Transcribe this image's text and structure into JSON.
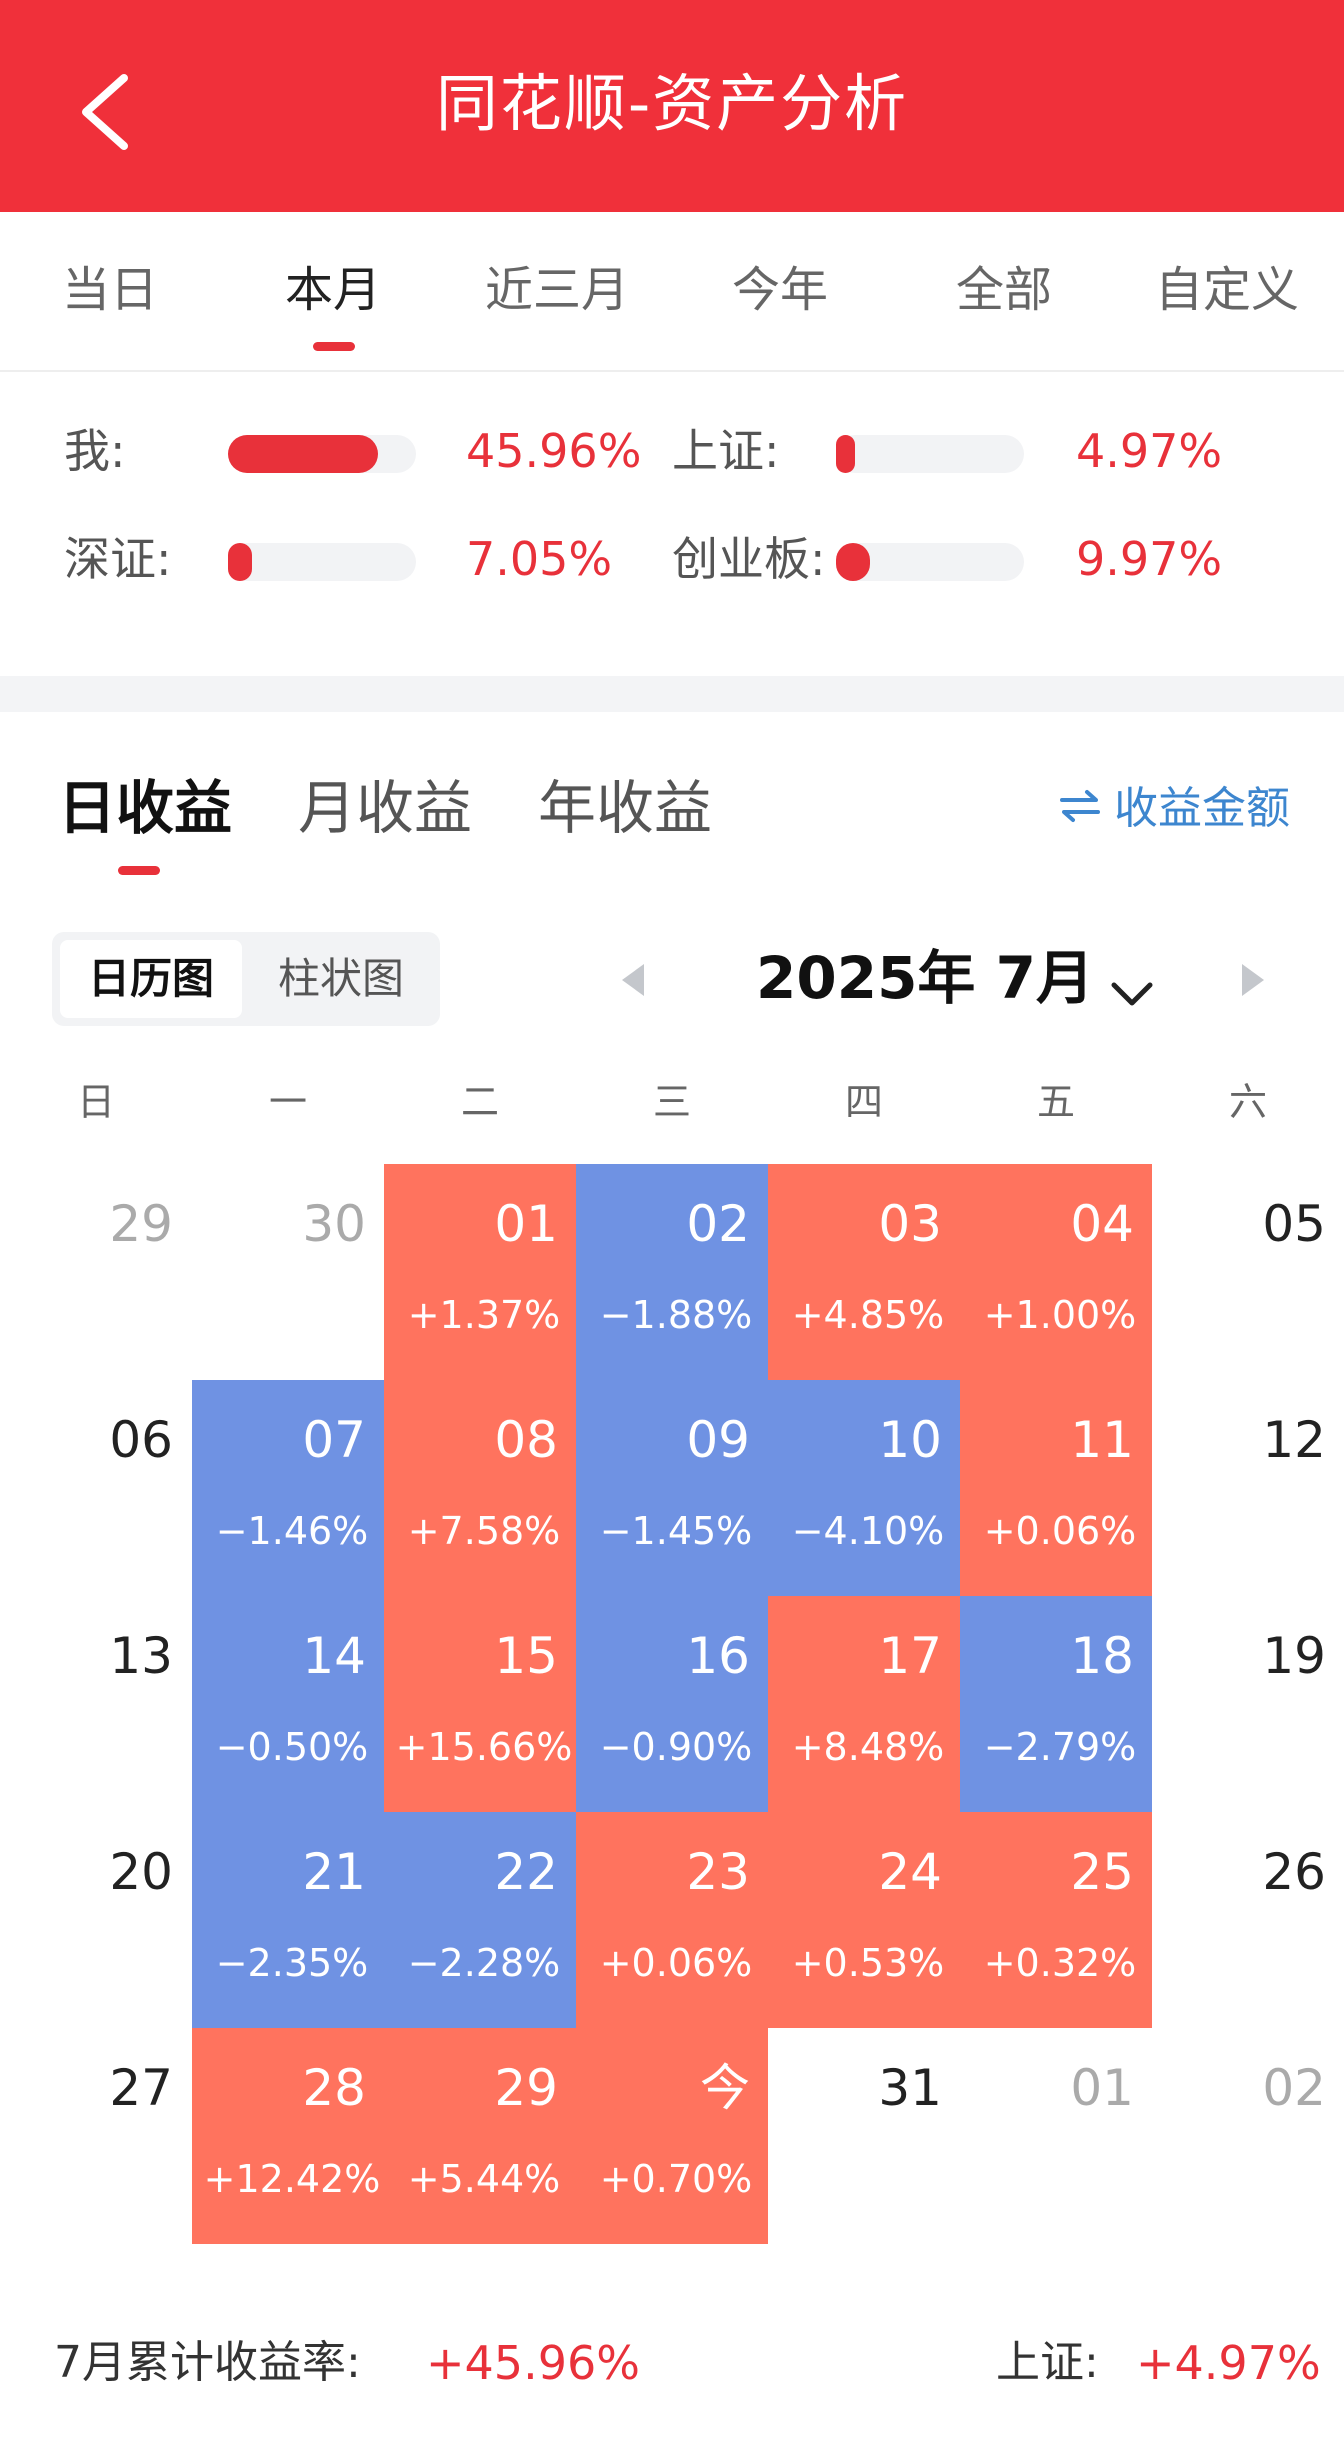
{
  "header": {
    "title": "同花顺-资产分析",
    "back_icon": "chevron-left-icon",
    "background": "#f0303a"
  },
  "period_tabs": [
    {
      "label": "当日",
      "active": false
    },
    {
      "label": "本月",
      "active": true
    },
    {
      "label": "近三月",
      "active": false
    },
    {
      "label": "今年",
      "active": false
    },
    {
      "label": "全部",
      "active": false
    },
    {
      "label": "自定义",
      "active": false
    }
  ],
  "comparison": [
    {
      "label": "我:",
      "value": "45.96%",
      "fill": 0.8
    },
    {
      "label": "上证:",
      "value": "4.97%",
      "fill": 0.09
    },
    {
      "label": "深证:",
      "value": "7.05%",
      "fill": 0.13
    },
    {
      "label": "创业板:",
      "value": "9.97%",
      "fill": 0.18
    }
  ],
  "gain_tabs": [
    {
      "label": "日收益",
      "active": true
    },
    {
      "label": "月收益",
      "active": false
    },
    {
      "label": "年收益",
      "active": false
    }
  ],
  "amount_toggle": {
    "label": "收益金额",
    "icon": "swap-arrows-icon"
  },
  "view_switch": [
    {
      "label": "日历图",
      "active": true
    },
    {
      "label": "柱状图",
      "active": false
    }
  ],
  "month_nav": {
    "label": "2025年 7月",
    "prev_icon": "caret-left-icon",
    "next_icon": "caret-right-icon",
    "dropdown_icon": "chevron-down-icon"
  },
  "weekdays": [
    "日",
    "一",
    "二",
    "三",
    "四",
    "五",
    "六"
  ],
  "calendar": [
    [
      {
        "day": "29",
        "state": "muted"
      },
      {
        "day": "30",
        "state": "muted"
      },
      {
        "day": "01",
        "pct": "+1.37%",
        "state": "pos"
      },
      {
        "day": "02",
        "pct": "−1.88%",
        "state": "neg"
      },
      {
        "day": "03",
        "pct": "+4.85%",
        "state": "pos"
      },
      {
        "day": "04",
        "pct": "+1.00%",
        "state": "pos"
      },
      {
        "day": "05",
        "state": "plain"
      }
    ],
    [
      {
        "day": "06",
        "state": "plain"
      },
      {
        "day": "07",
        "pct": "−1.46%",
        "state": "neg"
      },
      {
        "day": "08",
        "pct": "+7.58%",
        "state": "pos"
      },
      {
        "day": "09",
        "pct": "−1.45%",
        "state": "neg"
      },
      {
        "day": "10",
        "pct": "−4.10%",
        "state": "neg"
      },
      {
        "day": "11",
        "pct": "+0.06%",
        "state": "pos"
      },
      {
        "day": "12",
        "state": "plain"
      }
    ],
    [
      {
        "day": "13",
        "state": "plain"
      },
      {
        "day": "14",
        "pct": "−0.50%",
        "state": "neg"
      },
      {
        "day": "15",
        "pct": "+15.66%",
        "state": "pos"
      },
      {
        "day": "16",
        "pct": "−0.90%",
        "state": "neg"
      },
      {
        "day": "17",
        "pct": "+8.48%",
        "state": "pos"
      },
      {
        "day": "18",
        "pct": "−2.79%",
        "state": "neg"
      },
      {
        "day": "19",
        "state": "plain"
      }
    ],
    [
      {
        "day": "20",
        "state": "plain"
      },
      {
        "day": "21",
        "pct": "−2.35%",
        "state": "neg"
      },
      {
        "day": "22",
        "pct": "−2.28%",
        "state": "neg"
      },
      {
        "day": "23",
        "pct": "+0.06%",
        "state": "pos"
      },
      {
        "day": "24",
        "pct": "+0.53%",
        "state": "pos"
      },
      {
        "day": "25",
        "pct": "+0.32%",
        "state": "pos"
      },
      {
        "day": "26",
        "state": "plain"
      }
    ],
    [
      {
        "day": "27",
        "state": "plain"
      },
      {
        "day": "28",
        "pct": "+12.42%",
        "state": "pos"
      },
      {
        "day": "29",
        "pct": "+5.44%",
        "state": "pos"
      },
      {
        "day": "今",
        "pct": "+0.70%",
        "state": "pos"
      },
      {
        "day": "31",
        "state": "plain"
      },
      {
        "day": "01",
        "state": "muted"
      },
      {
        "day": "02",
        "state": "muted"
      }
    ]
  ],
  "colors": {
    "accent_red": "#e8313a",
    "gain_cell": "#ff735e",
    "loss_cell": "#6f92e3",
    "link_blue": "#3d86cf"
  },
  "footer": {
    "label": "7月累计收益率:",
    "value": "+45.96%",
    "bench_label": "上证:",
    "bench_value": "+4.97%"
  }
}
